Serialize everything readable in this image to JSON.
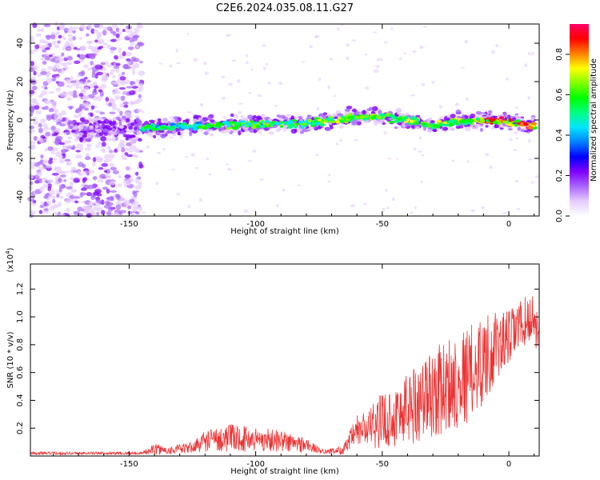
{
  "figure": {
    "title": "C2E6.2024.035.08.11.G27"
  },
  "chart_data": [
    {
      "type": "heatmap",
      "title": "C2E6.2024.035.08.11.G27",
      "xlabel": "Height of straight line (km)",
      "ylabel": "Frequency (Hz)",
      "xlim": [
        -189,
        12
      ],
      "ylim": [
        -50,
        50
      ],
      "xticks": [
        -150,
        -100,
        -50,
        0
      ],
      "xtick_labels": [
        "-150",
        "-100",
        "-50",
        "0"
      ],
      "yticks": [
        -40,
        -20,
        0,
        20,
        40
      ],
      "ytick_labels": [
        "-40",
        "-20",
        "0",
        "20",
        "40"
      ],
      "colorbar": {
        "label": "Normalized spectral amplitude",
        "range": [
          0,
          0.95
        ],
        "ticks": [
          0.0,
          0.2,
          0.4,
          0.6,
          0.8
        ],
        "tick_labels": [
          "0.0",
          "0.2",
          "0.4",
          "0.6",
          "0.8"
        ],
        "colormap": [
          "#ffffff",
          "#e6ccff",
          "#aa66ff",
          "#8000ff",
          "#0000ff",
          "#0080ff",
          "#00e5ff",
          "#00ff80",
          "#00ff00",
          "#80ff00",
          "#ffff00",
          "#ff8000",
          "#ff0000",
          "#ff0066"
        ]
      },
      "ridge": {
        "x": [
          -175,
          -150,
          -140,
          -120,
          -100,
          -80,
          -70,
          -60,
          -50,
          -40,
          -30,
          -20,
          -10,
          0,
          10
        ],
        "freq": [
          -5,
          -4,
          -4,
          -3,
          -2,
          -2,
          0,
          2,
          2,
          0,
          -3,
          -1,
          0,
          -1,
          -3
        ]
      },
      "noise_region": {
        "x": [
          -189,
          -145
        ],
        "freq": [
          -50,
          50
        ]
      },
      "grid": false
    },
    {
      "type": "line",
      "xlabel": "Height of straight line (km)",
      "ylabel": "SNR (10 * v/v)",
      "y_scale_label": "(x10^4)",
      "xlim": [
        -189,
        12
      ],
      "ylim": [
        0,
        1.38
      ],
      "xticks": [
        -150,
        -100,
        -50,
        0
      ],
      "xtick_labels": [
        "-150",
        "-100",
        "-50",
        "0"
      ],
      "yticks": [
        0.2,
        0.4,
        0.6,
        0.8,
        1.0,
        1.2
      ],
      "ytick_labels": [
        "0.2",
        "0.4",
        "0.6",
        "0.8",
        "1.0",
        "1.2"
      ],
      "line_color": "#ee3333",
      "envelope": {
        "x": [
          -189,
          -160,
          -145,
          -140,
          -135,
          -125,
          -120,
          -110,
          -100,
          -90,
          -85,
          -80,
          -75,
          -70,
          -65,
          -60,
          -55,
          -50,
          -45,
          -40,
          -35,
          -30,
          -25,
          -20,
          -15,
          -10,
          -5,
          0,
          5,
          10,
          12
        ],
        "mean": [
          0.02,
          0.02,
          0.02,
          0.05,
          0.04,
          0.06,
          0.11,
          0.13,
          0.12,
          0.11,
          0.09,
          0.08,
          0.04,
          0.03,
          0.05,
          0.18,
          0.2,
          0.26,
          0.28,
          0.35,
          0.4,
          0.45,
          0.5,
          0.55,
          0.6,
          0.7,
          0.78,
          0.85,
          0.95,
          1.0,
          0.85
        ],
        "spread": [
          0.01,
          0.01,
          0.01,
          0.04,
          0.03,
          0.04,
          0.08,
          0.1,
          0.09,
          0.08,
          0.07,
          0.06,
          0.02,
          0.02,
          0.04,
          0.12,
          0.15,
          0.2,
          0.22,
          0.28,
          0.3,
          0.32,
          0.34,
          0.35,
          0.35,
          0.33,
          0.25,
          0.2,
          0.18,
          0.18,
          0.15
        ]
      },
      "grid": false
    }
  ]
}
